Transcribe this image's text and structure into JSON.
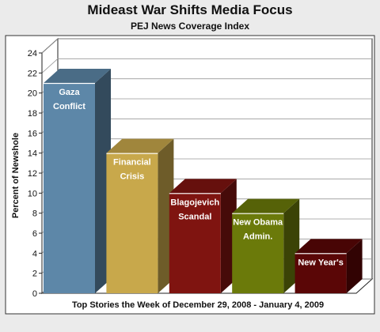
{
  "chart_data": {
    "type": "bar",
    "title": "Mideast War Shifts Media Focus",
    "subtitle": "PEJ News Coverage Index",
    "xlabel": "Top Stories the Week of December 29, 2008 - January 4, 2009",
    "ylabel": "Percent of Newshole",
    "ylim": [
      0,
      24
    ],
    "yticks": [
      "0",
      "2",
      "4",
      "6",
      "8",
      "10",
      "12",
      "14",
      "16",
      "18",
      "20",
      "22",
      "24"
    ],
    "grid": true,
    "bar_style": "3d",
    "categories": [
      [
        "Gaza",
        "Conflict"
      ],
      [
        "Financial",
        "Crisis"
      ],
      [
        "Blagojevich",
        "Scandal"
      ],
      [
        "New Obama",
        "Admin."
      ],
      [
        "New Year's"
      ]
    ],
    "values": [
      21,
      14,
      10,
      8,
      4
    ],
    "colors": [
      "#5d87a8",
      "#c8a84b",
      "#7f1410",
      "#6b7a0a",
      "#5a0606"
    ]
  }
}
